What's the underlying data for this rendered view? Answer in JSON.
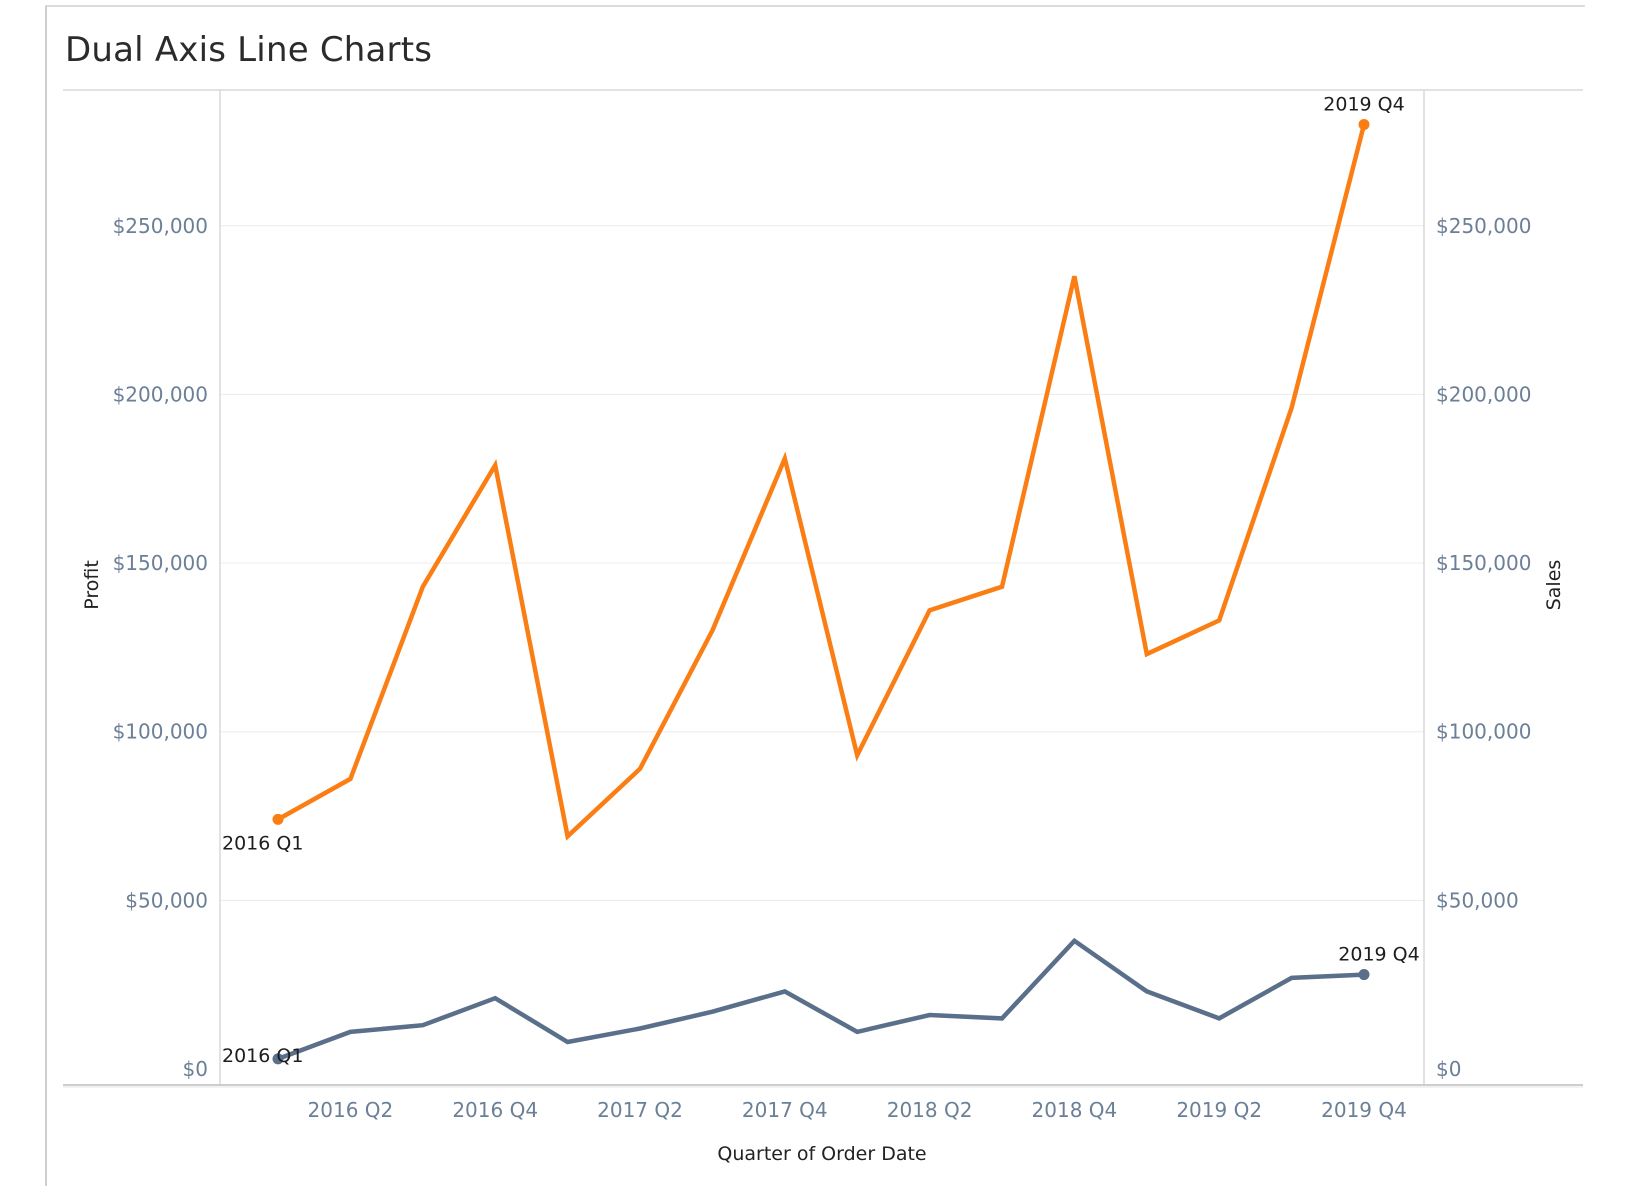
{
  "title": "Dual Axis Line Charts",
  "colors": {
    "sales": "#fb7e14",
    "profit": "#5a6f8a",
    "tick_text": "#6b7f96"
  },
  "chart_data": {
    "type": "line",
    "title": "Dual Axis Line Charts",
    "xlabel": "Quarter of Order Date",
    "ylabel_left": "Profit",
    "ylabel_right": "Sales",
    "x": [
      "2016 Q1",
      "2016 Q2",
      "2016 Q3",
      "2016 Q4",
      "2017 Q1",
      "2017 Q2",
      "2017 Q3",
      "2017 Q4",
      "2018 Q1",
      "2018 Q2",
      "2018 Q3",
      "2018 Q4",
      "2019 Q1",
      "2019 Q2",
      "2019 Q3",
      "2019 Q4"
    ],
    "x_tick_labels": [
      "2016 Q2",
      "2016 Q4",
      "2017 Q2",
      "2017 Q4",
      "2018 Q2",
      "2018 Q4",
      "2019 Q2",
      "2019 Q4"
    ],
    "ylim": [
      0,
      290000
    ],
    "y_ticks": [
      {
        "value": 0,
        "label": "$0"
      },
      {
        "value": 50000,
        "label": "$50,000"
      },
      {
        "value": 100000,
        "label": "$100,000"
      },
      {
        "value": 150000,
        "label": "$150,000"
      },
      {
        "value": 200000,
        "label": "$200,000"
      },
      {
        "value": 250000,
        "label": "$250,000"
      }
    ],
    "grid": true,
    "series": [
      {
        "key": "sales",
        "axis": "right",
        "values": [
          74000,
          86000,
          143000,
          179000,
          69000,
          89000,
          130000,
          181000,
          93000,
          136000,
          143000,
          235000,
          123000,
          133000,
          196000,
          280000
        ]
      },
      {
        "key": "profit",
        "axis": "left",
        "values": [
          3000,
          11000,
          13000,
          21000,
          8000,
          12000,
          17000,
          23000,
          11000,
          16000,
          15000,
          38000,
          23000,
          15000,
          27000,
          28000
        ]
      }
    ],
    "annotations": [
      {
        "series": "sales",
        "index": 0,
        "text": "2016 Q1"
      },
      {
        "series": "sales",
        "index": 15,
        "text": "2019 Q4"
      },
      {
        "series": "profit",
        "index": 0,
        "text": "2016 Q1"
      },
      {
        "series": "profit",
        "index": 15,
        "text": "2019 Q4"
      }
    ]
  }
}
